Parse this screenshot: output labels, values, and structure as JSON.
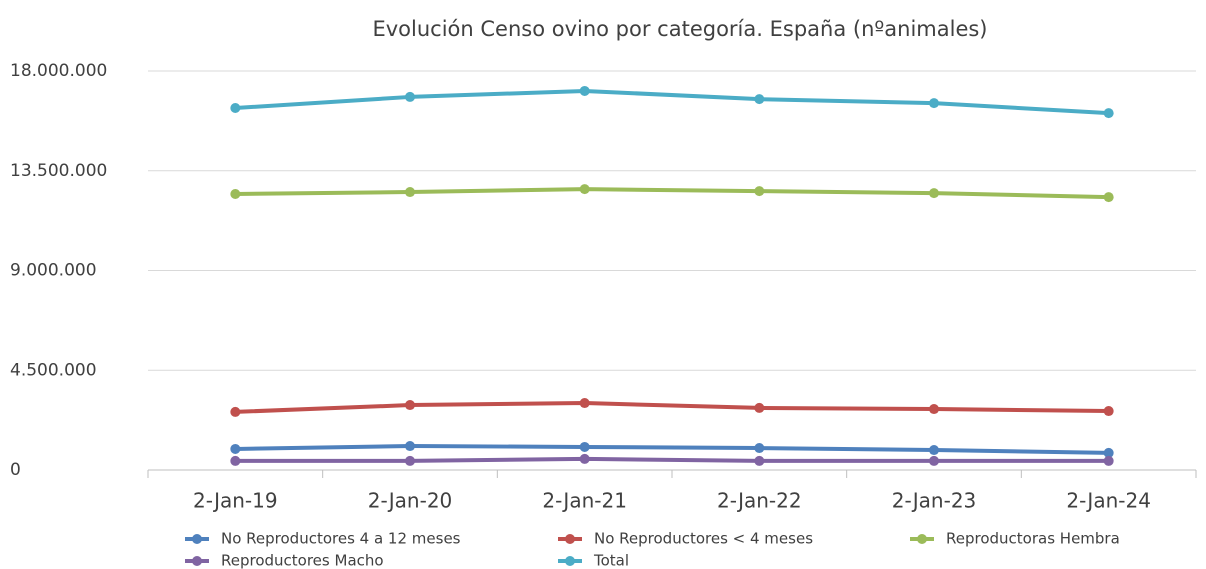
{
  "chart_data": {
    "type": "line",
    "title": "Evolución Censo ovino por categoría. España (nºanimales)",
    "categories": [
      "2-Jan-19",
      "2-Jan-20",
      "2-Jan-21",
      "2-Jan-22",
      "2-Jan-23",
      "2-Jan-24"
    ],
    "series": [
      {
        "name": "No Reproductores 4 a 12 meses",
        "color": "#4f81bd",
        "values": [
          950000,
          1080000,
          1040000,
          990000,
          900000,
          770000
        ]
      },
      {
        "name": "No Reproductores < 4 meses",
        "color": "#c0504d",
        "values": [
          2620000,
          2930000,
          3020000,
          2800000,
          2750000,
          2660000
        ]
      },
      {
        "name": "Reproductoras Hembra",
        "color": "#9bbb59",
        "values": [
          12450000,
          12540000,
          12670000,
          12580000,
          12490000,
          12310000
        ]
      },
      {
        "name": "Reproductores Macho",
        "color": "#8064a2",
        "values": [
          410000,
          410000,
          500000,
          410000,
          410000,
          410000
        ]
      },
      {
        "name": "Total",
        "color": "#4bacc6",
        "values": [
          16330000,
          16830000,
          17100000,
          16730000,
          16550000,
          16100000
        ]
      }
    ],
    "ylim": [
      0,
      18000000
    ],
    "yticks": [
      0,
      {
        "value": 4500000,
        "label": "4.500.000"
      },
      {
        "value": 9000000,
        "label": "9.000.000"
      },
      {
        "value": 13500000,
        "label": "13.500.000"
      },
      {
        "value": 18000000,
        "label": "18.000.000"
      }
    ],
    "grid": true,
    "legend": "bottom"
  }
}
